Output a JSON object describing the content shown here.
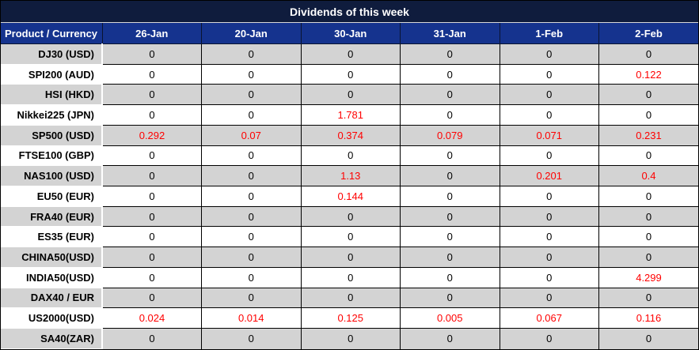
{
  "title": "Dividends of this week",
  "colors": {
    "title_bg": "#0f1c3d",
    "header_bg": "#15338e",
    "row_alt_bg": "#d3d3d3",
    "row_bg": "#ffffff",
    "nonzero_value_text": "#ff0000",
    "zero_value_text": "#000000"
  },
  "table": {
    "corner_header": "Product / Currency",
    "columns": [
      "26-Jan",
      "20-Jan",
      "30-Jan",
      "31-Jan",
      "1-Feb",
      "2-Feb"
    ],
    "rows": [
      {
        "product": "DJ30 (USD)",
        "values": [
          "0",
          "0",
          "0",
          "0",
          "0",
          "0"
        ]
      },
      {
        "product": "SPI200 (AUD)",
        "values": [
          "0",
          "0",
          "0",
          "0",
          "0",
          "0.122"
        ]
      },
      {
        "product": "HSI (HKD)",
        "values": [
          "0",
          "0",
          "0",
          "0",
          "0",
          "0"
        ]
      },
      {
        "product": "Nikkei225 (JPN)",
        "values": [
          "0",
          "0",
          "1.781",
          "0",
          "0",
          "0"
        ]
      },
      {
        "product": "SP500 (USD)",
        "values": [
          "0.292",
          "0.07",
          "0.374",
          "0.079",
          "0.071",
          "0.231"
        ]
      },
      {
        "product": "FTSE100 (GBP)",
        "values": [
          "0",
          "0",
          "0",
          "0",
          "0",
          "0"
        ]
      },
      {
        "product": "NAS100 (USD)",
        "values": [
          "0",
          "0",
          "1.13",
          "0",
          "0.201",
          "0.4"
        ]
      },
      {
        "product": "EU50 (EUR)",
        "values": [
          "0",
          "0",
          "0.144",
          "0",
          "0",
          "0"
        ]
      },
      {
        "product": "FRA40 (EUR)",
        "values": [
          "0",
          "0",
          "0",
          "0",
          "0",
          "0"
        ]
      },
      {
        "product": "ES35 (EUR)",
        "values": [
          "0",
          "0",
          "0",
          "0",
          "0",
          "0"
        ]
      },
      {
        "product": "CHINA50(USD)",
        "values": [
          "0",
          "0",
          "0",
          "0",
          "0",
          "0"
        ]
      },
      {
        "product": "INDIA50(USD)",
        "values": [
          "0",
          "0",
          "0",
          "0",
          "0",
          "4.299"
        ]
      },
      {
        "product": "DAX40 / EUR",
        "values": [
          "0",
          "0",
          "0",
          "0",
          "0",
          "0"
        ]
      },
      {
        "product": "US2000(USD)",
        "values": [
          "0.024",
          "0.014",
          "0.125",
          "0.005",
          "0.067",
          "0.116"
        ]
      },
      {
        "product": "SA40(ZAR)",
        "values": [
          "0",
          "0",
          "0",
          "0",
          "0",
          "0"
        ]
      }
    ]
  }
}
